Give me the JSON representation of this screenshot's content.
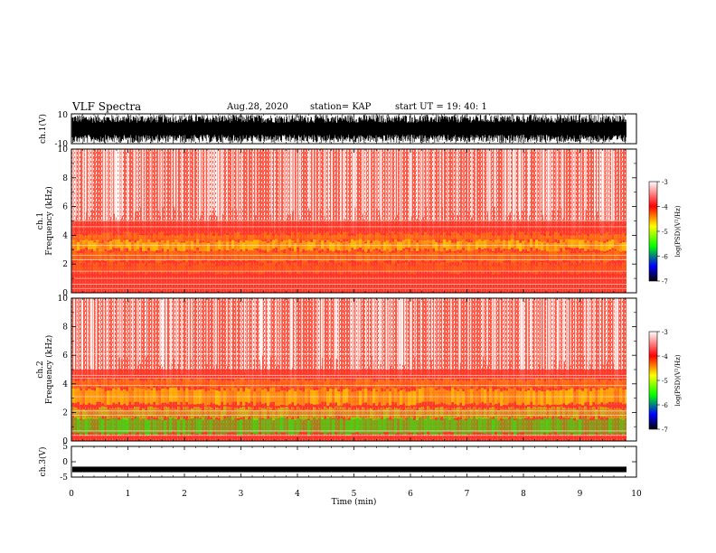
{
  "header": {
    "title": "VLF Spectra",
    "date": "Aug.28, 2020",
    "station": "station= KAP",
    "start": "start  UT  =    19: 40: 1"
  },
  "colors": {
    "spectrogram_background": "#ff4a3a",
    "waveform": "#000000",
    "colorbar_stops": [
      "#ffffff",
      "#ff0000",
      "#ffff00",
      "#00ff00",
      "#0000ff",
      "#000000"
    ]
  },
  "chart_data": [
    {
      "type": "line",
      "panel": "ch1-waveform",
      "ylabel": "ch.1(V)",
      "ylim": [
        -10,
        10
      ],
      "yticks": [
        "10",
        "-10"
      ],
      "xlim": [
        0,
        10
      ],
      "series": [
        {
          "description_only": true,
          "values": []
        }
      ]
    },
    {
      "type": "heatmap",
      "panel": "ch1-spectrogram",
      "ylabel": "ch.1\nFrequency  (kHz)",
      "ylim": [
        0,
        10
      ],
      "yticks": [
        "0",
        "2",
        "4",
        "6",
        "8",
        "10"
      ],
      "xlim": [
        0,
        10
      ],
      "colorbar": {
        "label": "log(PSD)(V²/Hz)",
        "ticks": [
          "-3",
          "-4",
          "-5",
          "-6",
          "-7"
        ],
        "range": [
          -7,
          -3
        ]
      }
    },
    {
      "type": "heatmap",
      "panel": "ch2-spectrogram",
      "ylabel": "ch.2\nFrequency  (kHz)",
      "ylim": [
        0,
        10
      ],
      "yticks": [
        "0",
        "2",
        "4",
        "6",
        "8",
        "10"
      ],
      "xlim": [
        0,
        10
      ],
      "colorbar": {
        "label": "log(PSD)(V²/Hz)",
        "ticks": [
          "-3",
          "-4",
          "-5",
          "-6",
          "-7"
        ],
        "range": [
          -7,
          -3
        ]
      }
    },
    {
      "type": "line",
      "panel": "ch3-waveform",
      "ylabel": "ch.3(V)",
      "ylim": [
        -5,
        5
      ],
      "yticks": [
        "5",
        "0",
        "-5"
      ],
      "xlim": [
        0,
        10
      ],
      "xlabel": "Time  (min)",
      "xticks": [
        "0",
        "1",
        "2",
        "3",
        "4",
        "5",
        "6",
        "7",
        "8",
        "9",
        "10"
      ]
    }
  ],
  "labels": {
    "ch1_wave": "ch.1(V)",
    "ch1_spec_a": "ch.1",
    "ch1_spec_b": "Frequency  (kHz)",
    "ch2_spec_a": "ch.2",
    "ch2_spec_b": "Frequency  (kHz)",
    "ch3_wave": "ch.3(V)",
    "xlabel": "Time  (min)",
    "cbar1": "log(PSD)(V²/Hz)",
    "cbar2": "log(PSD)(V²/Hz)"
  }
}
